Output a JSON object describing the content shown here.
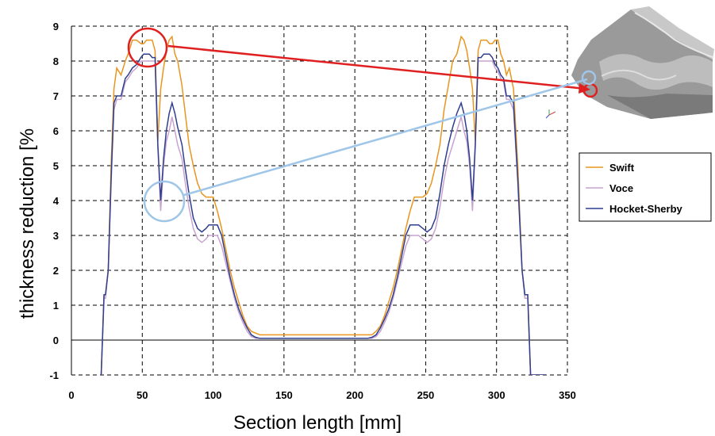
{
  "chart_data": {
    "type": "line",
    "xlabel": "Section length [mm]",
    "ylabel": "thickness reduction [%",
    "xlim": [
      0,
      350
    ],
    "ylim": [
      -1,
      9
    ],
    "xticks": [
      0,
      50,
      100,
      150,
      200,
      250,
      300,
      350
    ],
    "yticks": [
      -1,
      0,
      1,
      2,
      3,
      4,
      5,
      6,
      7,
      8,
      9
    ],
    "grid": true,
    "legend": "right",
    "series": [
      {
        "name": "Swift",
        "color": "#E8961E",
        "x": [
          21,
          23,
          24,
          26,
          28,
          30,
          32,
          35,
          38,
          40,
          43,
          46,
          49,
          51,
          53,
          55,
          57,
          59,
          61,
          63,
          65,
          67,
          69,
          71,
          73,
          75,
          78,
          80,
          83,
          86,
          89,
          92,
          95,
          97,
          100,
          103,
          106,
          109,
          112,
          115,
          118,
          121,
          124,
          127,
          130,
          133,
          136,
          139,
          142,
          145,
          148,
          151,
          154,
          157,
          160,
          170,
          180,
          190,
          200,
          203,
          206,
          209,
          212,
          215,
          218,
          221,
          224,
          227,
          230,
          233,
          236,
          239,
          242,
          245,
          248,
          251,
          254,
          257,
          260,
          263,
          266,
          269,
          272,
          275,
          277,
          279,
          281,
          283,
          285,
          287,
          289,
          291,
          293,
          295,
          297,
          299,
          301,
          303,
          305,
          307,
          309,
          312,
          315,
          318,
          320,
          322,
          324,
          326,
          328,
          330,
          332,
          334,
          335
        ],
        "values": [
          -1.0,
          1.3,
          1.3,
          2.0,
          5.0,
          7.2,
          7.8,
          7.6,
          8.0,
          8.2,
          8.6,
          8.6,
          8.5,
          8.5,
          8.6,
          8.6,
          8.6,
          8.3,
          5.7,
          7.2,
          7.8,
          8.3,
          8.6,
          8.7,
          8.2,
          8.0,
          7.3,
          6.6,
          5.6,
          5.0,
          4.5,
          4.2,
          4.1,
          4.1,
          4.1,
          3.7,
          3.2,
          2.6,
          2.0,
          1.5,
          1.1,
          0.7,
          0.4,
          0.25,
          0.2,
          0.15,
          0.15,
          0.15,
          0.15,
          0.15,
          0.15,
          0.15,
          0.15,
          0.15,
          0.15,
          0.15,
          0.15,
          0.15,
          0.15,
          0.15,
          0.15,
          0.15,
          0.15,
          0.25,
          0.4,
          0.7,
          1.1,
          1.5,
          2.0,
          2.6,
          3.2,
          3.7,
          4.1,
          4.1,
          4.1,
          4.2,
          4.5,
          5.0,
          5.6,
          6.6,
          7.3,
          8.0,
          8.2,
          8.7,
          8.6,
          8.3,
          7.8,
          7.2,
          5.7,
          8.3,
          8.6,
          8.6,
          8.6,
          8.5,
          8.5,
          8.6,
          8.6,
          8.2,
          8.0,
          7.6,
          7.8,
          7.2,
          5.0,
          2.0,
          1.3,
          1.3,
          -1.0,
          -1.0,
          -1.0,
          -1.0,
          -1.0,
          -1.0,
          -1.0
        ]
      },
      {
        "name": "Voce",
        "color": "#C9A3D0",
        "x": [
          21,
          23,
          24,
          26,
          28,
          30,
          32,
          35,
          38,
          40,
          43,
          46,
          49,
          51,
          53,
          55,
          57,
          59,
          61,
          63,
          65,
          67,
          69,
          71,
          73,
          75,
          78,
          80,
          83,
          86,
          89,
          92,
          95,
          97,
          100,
          103,
          106,
          109,
          112,
          115,
          118,
          121,
          124,
          127,
          130,
          133,
          136,
          139,
          142,
          145,
          148,
          151,
          154,
          157,
          160,
          170,
          180,
          190,
          200,
          203,
          206,
          209,
          212,
          215,
          218,
          221,
          224,
          227,
          230,
          233,
          236,
          239,
          242,
          245,
          248,
          251,
          254,
          257,
          260,
          263,
          266,
          269,
          272,
          275,
          277,
          279,
          281,
          283,
          285,
          287,
          289,
          291,
          293,
          295,
          297,
          299,
          301,
          303,
          305,
          307,
          309,
          312,
          315,
          318,
          320,
          322,
          324,
          326,
          328,
          330,
          332,
          334,
          335
        ],
        "values": [
          -1.0,
          1.2,
          1.2,
          2.0,
          4.5,
          6.6,
          6.9,
          6.9,
          7.4,
          7.5,
          7.7,
          7.8,
          8.0,
          8.0,
          8.0,
          8.0,
          8.0,
          8.0,
          5.5,
          3.7,
          5.0,
          5.7,
          6.0,
          6.4,
          6.0,
          5.6,
          5.2,
          4.6,
          3.8,
          3.2,
          2.9,
          2.8,
          2.9,
          3.0,
          3.0,
          3.0,
          2.7,
          2.2,
          1.7,
          1.2,
          0.8,
          0.5,
          0.25,
          0.1,
          0.05,
          0.05,
          0.05,
          0.05,
          0.05,
          0.05,
          0.05,
          0.05,
          0.05,
          0.05,
          0.05,
          0.05,
          0.05,
          0.05,
          0.05,
          0.05,
          0.05,
          0.05,
          0.05,
          0.1,
          0.25,
          0.5,
          0.8,
          1.2,
          1.7,
          2.2,
          2.7,
          3.0,
          3.0,
          3.0,
          2.9,
          2.8,
          2.9,
          3.2,
          3.8,
          4.6,
          5.2,
          5.6,
          6.0,
          6.4,
          6.0,
          5.7,
          5.0,
          3.7,
          5.5,
          8.0,
          8.0,
          8.0,
          8.0,
          8.0,
          8.0,
          7.8,
          7.7,
          7.5,
          7.4,
          6.9,
          6.9,
          6.6,
          4.5,
          2.0,
          1.2,
          1.2,
          -1.0,
          -1.0,
          -1.0,
          -1.0,
          -1.0,
          -1.0,
          -1.0
        ]
      },
      {
        "name": "Hocket-Sherby",
        "color": "#2E3F8F",
        "x": [
          21,
          23,
          24,
          26,
          28,
          30,
          32,
          35,
          38,
          40,
          43,
          46,
          49,
          51,
          53,
          55,
          57,
          59,
          61,
          63,
          65,
          67,
          69,
          71,
          73,
          75,
          78,
          80,
          83,
          86,
          89,
          92,
          95,
          97,
          100,
          103,
          106,
          109,
          112,
          115,
          118,
          121,
          124,
          127,
          130,
          133,
          136,
          139,
          142,
          145,
          148,
          151,
          154,
          157,
          160,
          170,
          180,
          190,
          200,
          203,
          206,
          209,
          212,
          215,
          218,
          221,
          224,
          227,
          230,
          233,
          236,
          239,
          242,
          245,
          248,
          251,
          254,
          257,
          260,
          263,
          266,
          269,
          272,
          275,
          277,
          279,
          281,
          283,
          285,
          287,
          289,
          291,
          293,
          295,
          297,
          299,
          301,
          303,
          305,
          307,
          309,
          312,
          315,
          318,
          320,
          322,
          324,
          326,
          328,
          330,
          332,
          334,
          335
        ],
        "values": [
          -1.0,
          1.3,
          1.3,
          2.0,
          4.6,
          6.8,
          7.0,
          7.0,
          7.5,
          7.6,
          7.8,
          7.9,
          8.1,
          8.2,
          8.2,
          8.2,
          8.1,
          8.1,
          5.6,
          4.0,
          5.2,
          6.0,
          6.5,
          6.8,
          6.5,
          6.1,
          5.6,
          5.0,
          4.2,
          3.5,
          3.2,
          3.1,
          3.2,
          3.3,
          3.3,
          3.3,
          3.0,
          2.4,
          1.8,
          1.3,
          0.9,
          0.6,
          0.35,
          0.15,
          0.08,
          0.05,
          0.05,
          0.05,
          0.05,
          0.05,
          0.05,
          0.05,
          0.05,
          0.05,
          0.05,
          0.05,
          0.05,
          0.05,
          0.05,
          0.05,
          0.05,
          0.05,
          0.08,
          0.15,
          0.35,
          0.6,
          0.9,
          1.3,
          1.8,
          2.4,
          3.0,
          3.3,
          3.3,
          3.3,
          3.2,
          3.1,
          3.2,
          3.5,
          4.2,
          5.0,
          5.6,
          6.1,
          6.5,
          6.8,
          6.5,
          6.0,
          5.2,
          4.0,
          5.6,
          8.1,
          8.1,
          8.2,
          8.2,
          8.2,
          8.1,
          7.9,
          7.8,
          7.6,
          7.5,
          7.0,
          7.0,
          6.8,
          4.6,
          2.0,
          1.3,
          1.3,
          -1.0,
          -1.0,
          -1.0,
          -1.0,
          -1.0,
          -1.0,
          -1.0
        ]
      }
    ],
    "annotations": [
      {
        "shape": "circle",
        "color": "#E02020",
        "x": 56,
        "y": 8.3
      },
      {
        "shape": "circle",
        "color": "#9FC6E8",
        "x": 67,
        "y": 4.0
      }
    ]
  }
}
